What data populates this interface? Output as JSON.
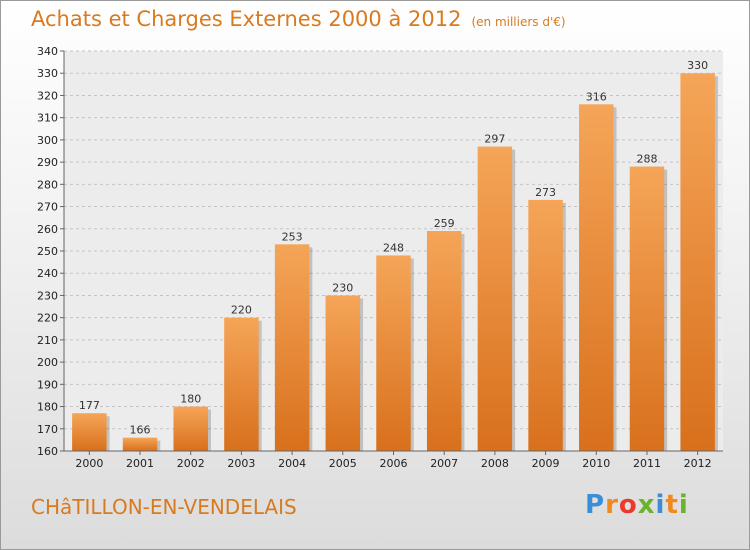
{
  "chart_data": {
    "type": "bar",
    "title": "Achats et Charges Externes 2000 à 2012",
    "subtitle": "(en milliers d'€)",
    "categories": [
      "2000",
      "2001",
      "2002",
      "2003",
      "2004",
      "2005",
      "2006",
      "2007",
      "2008",
      "2009",
      "2010",
      "2011",
      "2012"
    ],
    "values": [
      177,
      166,
      180,
      220,
      253,
      230,
      248,
      259,
      297,
      273,
      316,
      288,
      330
    ],
    "ylim": [
      160,
      340
    ],
    "yticks": [
      160,
      170,
      180,
      190,
      200,
      210,
      220,
      230,
      240,
      250,
      260,
      270,
      280,
      290,
      300,
      310,
      320,
      330,
      340
    ],
    "xlabel": "",
    "ylabel": "",
    "grid": true,
    "bar_color_top": "#f5a558",
    "bar_color_bottom": "#d8701c"
  },
  "footer": {
    "commune": "CHâTILLON-EN-VENDELAIS",
    "brand_letters": [
      "P",
      "r",
      "o",
      "x",
      "i",
      "t",
      "i"
    ],
    "brand_colors": [
      "#3a8ed8",
      "#f08a1c",
      "#e93a2c",
      "#6ab42d",
      "#3a8ed8",
      "#f08a1c",
      "#6ab42d"
    ]
  }
}
